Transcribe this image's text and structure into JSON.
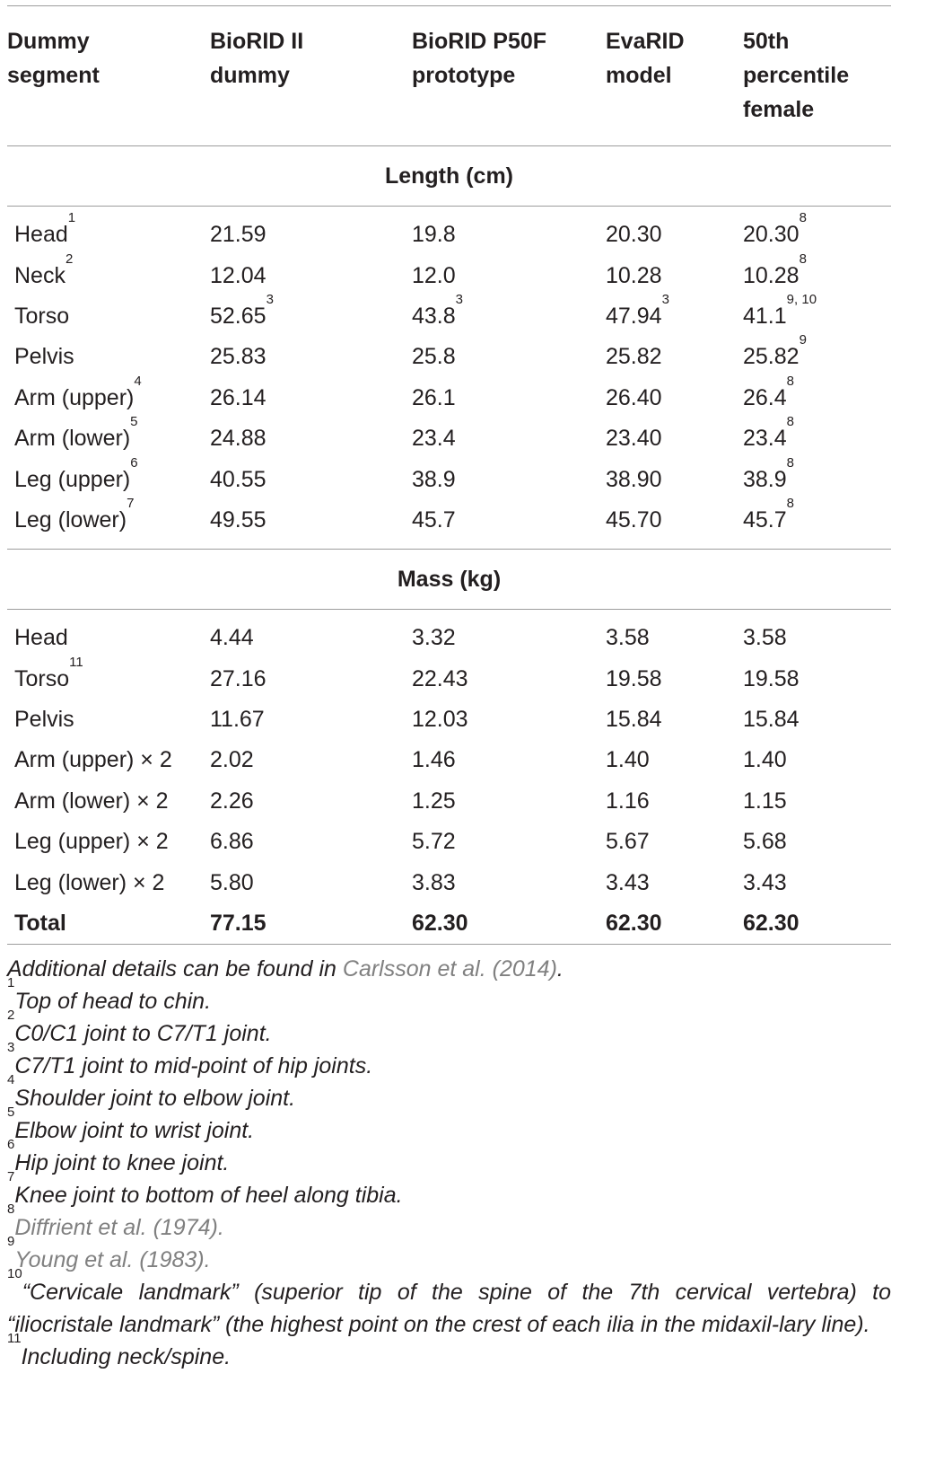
{
  "headers": [
    [
      "Dummy",
      "segment"
    ],
    [
      "BioRID II",
      "dummy"
    ],
    [
      "BioRID P50F",
      "prototype"
    ],
    [
      "EvaRID",
      "model"
    ],
    [
      "50th",
      "percentile",
      "female"
    ]
  ],
  "sections": [
    {
      "title": "Length (cm)",
      "rows": [
        {
          "cells": [
            {
              "t": "Head",
              "s": "1"
            },
            {
              "t": "21.59",
              "s": ""
            },
            {
              "t": "19.8",
              "s": ""
            },
            {
              "t": "20.30",
              "s": ""
            },
            {
              "t": "20.30",
              "s": "8"
            }
          ]
        },
        {
          "cells": [
            {
              "t": "Neck",
              "s": "2"
            },
            {
              "t": "12.04",
              "s": ""
            },
            {
              "t": "12.0",
              "s": ""
            },
            {
              "t": "10.28",
              "s": ""
            },
            {
              "t": "10.28",
              "s": "8"
            }
          ]
        },
        {
          "cells": [
            {
              "t": "Torso",
              "s": ""
            },
            {
              "t": "52.65",
              "s": "3"
            },
            {
              "t": "43.8",
              "s": "3"
            },
            {
              "t": "47.94",
              "s": "3"
            },
            {
              "t": "41.1",
              "s": "9, 10"
            }
          ]
        },
        {
          "cells": [
            {
              "t": "Pelvis",
              "s": ""
            },
            {
              "t": "25.83",
              "s": ""
            },
            {
              "t": "25.8",
              "s": ""
            },
            {
              "t": "25.82",
              "s": ""
            },
            {
              "t": "25.82",
              "s": "9"
            }
          ]
        },
        {
          "cells": [
            {
              "t": "Arm (upper)",
              "s": "4"
            },
            {
              "t": "26.14",
              "s": ""
            },
            {
              "t": "26.1",
              "s": ""
            },
            {
              "t": "26.40",
              "s": ""
            },
            {
              "t": "26.4",
              "s": "8"
            }
          ]
        },
        {
          "cells": [
            {
              "t": "Arm (lower)",
              "s": "5"
            },
            {
              "t": "24.88",
              "s": ""
            },
            {
              "t": "23.4",
              "s": ""
            },
            {
              "t": "23.40",
              "s": ""
            },
            {
              "t": "23.4",
              "s": "8"
            }
          ]
        },
        {
          "cells": [
            {
              "t": "Leg (upper)",
              "s": "6"
            },
            {
              "t": "40.55",
              "s": ""
            },
            {
              "t": "38.9",
              "s": ""
            },
            {
              "t": "38.90",
              "s": ""
            },
            {
              "t": "38.9",
              "s": "8"
            }
          ]
        },
        {
          "cells": [
            {
              "t": "Leg (lower)",
              "s": "7"
            },
            {
              "t": "49.55",
              "s": ""
            },
            {
              "t": "45.7",
              "s": ""
            },
            {
              "t": "45.70",
              "s": ""
            },
            {
              "t": "45.7",
              "s": "8"
            }
          ]
        }
      ]
    },
    {
      "title": "Mass (kg)",
      "rows": [
        {
          "cells": [
            {
              "t": "Head",
              "s": ""
            },
            {
              "t": "4.44",
              "s": ""
            },
            {
              "t": "3.32",
              "s": ""
            },
            {
              "t": "3.58",
              "s": ""
            },
            {
              "t": "3.58",
              "s": ""
            }
          ]
        },
        {
          "cells": [
            {
              "t": "Torso",
              "s": "11"
            },
            {
              "t": "27.16",
              "s": ""
            },
            {
              "t": "22.43",
              "s": ""
            },
            {
              "t": "19.58",
              "s": ""
            },
            {
              "t": "19.58",
              "s": ""
            }
          ]
        },
        {
          "cells": [
            {
              "t": "Pelvis",
              "s": ""
            },
            {
              "t": "11.67",
              "s": ""
            },
            {
              "t": "12.03",
              "s": ""
            },
            {
              "t": "15.84",
              "s": ""
            },
            {
              "t": "15.84",
              "s": ""
            }
          ]
        },
        {
          "cells": [
            {
              "t": "Arm (upper) × 2",
              "s": ""
            },
            {
              "t": "2.02",
              "s": ""
            },
            {
              "t": "1.46",
              "s": ""
            },
            {
              "t": "1.40",
              "s": ""
            },
            {
              "t": "1.40",
              "s": ""
            }
          ]
        },
        {
          "cells": [
            {
              "t": "Arm (lower) × 2",
              "s": ""
            },
            {
              "t": "2.26",
              "s": ""
            },
            {
              "t": "1.25",
              "s": ""
            },
            {
              "t": "1.16",
              "s": ""
            },
            {
              "t": "1.15",
              "s": ""
            }
          ]
        },
        {
          "cells": [
            {
              "t": "Leg (upper) × 2",
              "s": ""
            },
            {
              "t": "6.86",
              "s": ""
            },
            {
              "t": "5.72",
              "s": ""
            },
            {
              "t": "5.67",
              "s": ""
            },
            {
              "t": "5.68",
              "s": ""
            }
          ]
        },
        {
          "cells": [
            {
              "t": "Leg (lower) × 2",
              "s": ""
            },
            {
              "t": "5.80",
              "s": ""
            },
            {
              "t": "3.83",
              "s": ""
            },
            {
              "t": "3.43",
              "s": ""
            },
            {
              "t": "3.43",
              "s": ""
            }
          ]
        },
        {
          "bold": true,
          "cells": [
            {
              "t": "Total",
              "s": ""
            },
            {
              "t": "77.15",
              "s": ""
            },
            {
              "t": "62.30",
              "s": ""
            },
            {
              "t": "62.30",
              "s": ""
            },
            {
              "t": "62.30",
              "s": ""
            }
          ]
        }
      ]
    }
  ],
  "notes": {
    "intro_text": "Additional details can be found in ",
    "intro_ref": "Carlsson et al. (2014)",
    "intro_end": ".",
    "items": [
      {
        "n": "1",
        "text": "Top of head to chin.",
        "ref": false
      },
      {
        "n": "2",
        "text": "C0/C1 joint to C7/T1 joint.",
        "ref": false
      },
      {
        "n": "3",
        "text": "C7/T1 joint to mid-point of hip joints.",
        "ref": false
      },
      {
        "n": "4",
        "text": "Shoulder joint to elbow joint.",
        "ref": false
      },
      {
        "n": "5",
        "text": "Elbow joint to wrist joint.",
        "ref": false
      },
      {
        "n": "6",
        "text": "Hip joint to knee joint.",
        "ref": false
      },
      {
        "n": "7",
        "text": "Knee joint to bottom of heel along tibia.",
        "ref": false
      },
      {
        "n": "8",
        "text": "Diffrient et al. (1974).",
        "ref": true
      },
      {
        "n": "9",
        "text": "Young et al. (1983).",
        "ref": true
      },
      {
        "n": "10",
        "text": "“Cervicale landmark” (superior tip of the spine of the 7th cervical vertebra) to “iliocristale landmark” (the highest point on the crest of each ilia in the midaxil-lary line).",
        "ref": false
      },
      {
        "n": "11",
        "text": "Including neck/spine.",
        "ref": false
      }
    ]
  },
  "colors": {
    "rule": "#9d9d9d",
    "text": "#231f20",
    "reference": "#808080"
  }
}
